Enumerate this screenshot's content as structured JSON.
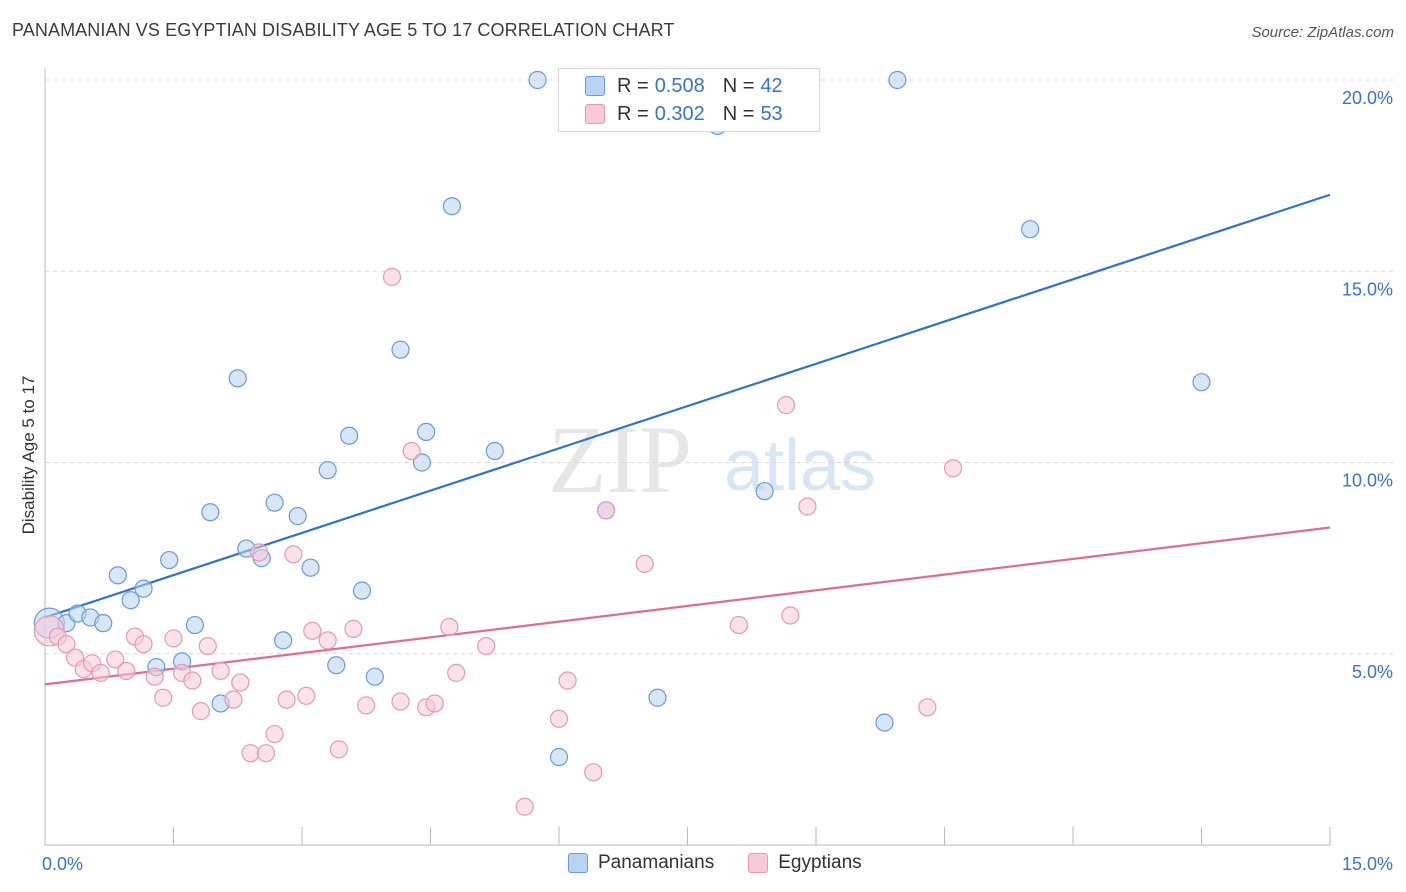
{
  "title": "PANAMANIAN VS EGYPTIAN DISABILITY AGE 5 TO 17 CORRELATION CHART",
  "source": "Source: ZipAtlas.com",
  "watermark": {
    "zip": "ZIP",
    "atlas": "atlas"
  },
  "legend": {
    "r_label": "R =",
    "n_label": "N =",
    "items": [
      {
        "r": "0.508",
        "n": "42"
      },
      {
        "r": "0.302",
        "n": "53"
      }
    ]
  },
  "colors": {
    "blue_fill": "#b8d3f3",
    "blue_stroke": "#6a9bd8",
    "blue_line": "#2f72d0",
    "pink_fill": "#f8cad8",
    "pink_stroke": "#e49ab2",
    "pink_line": "#e06b96",
    "axis_label": "#3a73c9",
    "grid": "#d9d9d9"
  },
  "chart_data": {
    "type": "scatter",
    "title": "PANAMANIAN VS EGYPTIAN DISABILITY AGE 5 TO 17 CORRELATION CHART",
    "xlabel": "",
    "ylabel": "Disability Age 5 to 17",
    "xlim": [
      0,
      15
    ],
    "ylim": [
      0,
      20
    ],
    "x_tick_labels": [
      "0.0%",
      "15.0%"
    ],
    "y_ticks": [
      5,
      10,
      15,
      20
    ],
    "y_tick_labels": [
      "5.0%",
      "10.0%",
      "15.0%",
      "20.0%"
    ],
    "grid": true,
    "series": [
      {
        "name": "Panamanians",
        "color": "#6a9bd8",
        "r": 0.508,
        "n": 42,
        "trend": {
          "x": [
            0,
            15
          ],
          "y": [
            5.95,
            17.0
          ]
        },
        "points": [
          {
            "x": 0.05,
            "y": 5.8,
            "big": true
          },
          {
            "x": 0.25,
            "y": 5.8
          },
          {
            "x": 0.38,
            "y": 6.05
          },
          {
            "x": 0.53,
            "y": 5.95
          },
          {
            "x": 0.68,
            "y": 5.8
          },
          {
            "x": 0.85,
            "y": 7.05
          },
          {
            "x": 1.0,
            "y": 6.4
          },
          {
            "x": 1.15,
            "y": 6.7
          },
          {
            "x": 1.3,
            "y": 4.65
          },
          {
            "x": 1.45,
            "y": 7.45
          },
          {
            "x": 1.6,
            "y": 4.8
          },
          {
            "x": 1.75,
            "y": 5.75
          },
          {
            "x": 1.93,
            "y": 8.7
          },
          {
            "x": 2.05,
            "y": 3.7
          },
          {
            "x": 2.25,
            "y": 12.2
          },
          {
            "x": 2.35,
            "y": 7.75
          },
          {
            "x": 2.53,
            "y": 7.5
          },
          {
            "x": 2.68,
            "y": 8.95
          },
          {
            "x": 2.78,
            "y": 5.35
          },
          {
            "x": 2.95,
            "y": 8.6
          },
          {
            "x": 3.1,
            "y": 7.25
          },
          {
            "x": 3.3,
            "y": 9.8
          },
          {
            "x": 3.4,
            "y": 4.7
          },
          {
            "x": 3.55,
            "y": 10.7
          },
          {
            "x": 3.7,
            "y": 6.65
          },
          {
            "x": 3.85,
            "y": 4.4
          },
          {
            "x": 4.15,
            "y": 12.95
          },
          {
            "x": 4.4,
            "y": 10.0
          },
          {
            "x": 4.45,
            "y": 10.8
          },
          {
            "x": 4.75,
            "y": 16.7
          },
          {
            "x": 5.25,
            "y": 10.3
          },
          {
            "x": 5.75,
            "y": 20.0
          },
          {
            "x": 6.0,
            "y": 2.3
          },
          {
            "x": 6.55,
            "y": 8.75
          },
          {
            "x": 7.15,
            "y": 3.85
          },
          {
            "x": 7.8,
            "y": 20.0
          },
          {
            "x": 7.85,
            "y": 18.8
          },
          {
            "x": 8.4,
            "y": 9.25
          },
          {
            "x": 9.8,
            "y": 3.2
          },
          {
            "x": 9.95,
            "y": 20.0
          },
          {
            "x": 11.5,
            "y": 16.1
          },
          {
            "x": 13.5,
            "y": 12.1
          }
        ]
      },
      {
        "name": "Egyptians",
        "color": "#e49ab2",
        "r": 0.302,
        "n": 53,
        "trend": {
          "x": [
            0,
            15
          ],
          "y": [
            4.2,
            8.3
          ]
        },
        "points": [
          {
            "x": 0.05,
            "y": 5.6,
            "big": true
          },
          {
            "x": 0.15,
            "y": 5.45
          },
          {
            "x": 0.25,
            "y": 5.25
          },
          {
            "x": 0.35,
            "y": 4.9
          },
          {
            "x": 0.45,
            "y": 4.6
          },
          {
            "x": 0.55,
            "y": 4.75
          },
          {
            "x": 0.65,
            "y": 4.5
          },
          {
            "x": 0.82,
            "y": 4.85
          },
          {
            "x": 0.95,
            "y": 4.55
          },
          {
            "x": 1.05,
            "y": 5.45
          },
          {
            "x": 1.15,
            "y": 5.25
          },
          {
            "x": 1.28,
            "y": 4.4
          },
          {
            "x": 1.38,
            "y": 3.85
          },
          {
            "x": 1.5,
            "y": 5.4
          },
          {
            "x": 1.6,
            "y": 4.5
          },
          {
            "x": 1.72,
            "y": 4.3
          },
          {
            "x": 1.82,
            "y": 3.5
          },
          {
            "x": 1.9,
            "y": 5.2
          },
          {
            "x": 2.05,
            "y": 4.55
          },
          {
            "x": 2.2,
            "y": 3.8
          },
          {
            "x": 2.28,
            "y": 4.25
          },
          {
            "x": 2.4,
            "y": 2.4
          },
          {
            "x": 2.5,
            "y": 7.65
          },
          {
            "x": 2.58,
            "y": 2.4
          },
          {
            "x": 2.68,
            "y": 2.9
          },
          {
            "x": 2.82,
            "y": 3.8
          },
          {
            "x": 2.9,
            "y": 7.6
          },
          {
            "x": 3.05,
            "y": 3.9
          },
          {
            "x": 3.12,
            "y": 5.6
          },
          {
            "x": 3.3,
            "y": 5.35
          },
          {
            "x": 3.43,
            "y": 2.5
          },
          {
            "x": 3.6,
            "y": 5.65
          },
          {
            "x": 3.75,
            "y": 3.65
          },
          {
            "x": 4.05,
            "y": 14.85
          },
          {
            "x": 4.15,
            "y": 3.75
          },
          {
            "x": 4.28,
            "y": 10.3
          },
          {
            "x": 4.45,
            "y": 3.6
          },
          {
            "x": 4.55,
            "y": 3.7
          },
          {
            "x": 4.72,
            "y": 5.7
          },
          {
            "x": 4.8,
            "y": 4.5
          },
          {
            "x": 5.15,
            "y": 5.2
          },
          {
            "x": 5.6,
            "y": 1.0
          },
          {
            "x": 6.0,
            "y": 3.3
          },
          {
            "x": 6.1,
            "y": 4.3
          },
          {
            "x": 6.4,
            "y": 1.9
          },
          {
            "x": 6.55,
            "y": 8.75
          },
          {
            "x": 7.0,
            "y": 7.35
          },
          {
            "x": 8.1,
            "y": 5.75
          },
          {
            "x": 8.65,
            "y": 11.5
          },
          {
            "x": 8.7,
            "y": 6.0
          },
          {
            "x": 8.9,
            "y": 8.85
          },
          {
            "x": 10.3,
            "y": 3.6
          },
          {
            "x": 10.6,
            "y": 9.85
          }
        ]
      }
    ]
  }
}
